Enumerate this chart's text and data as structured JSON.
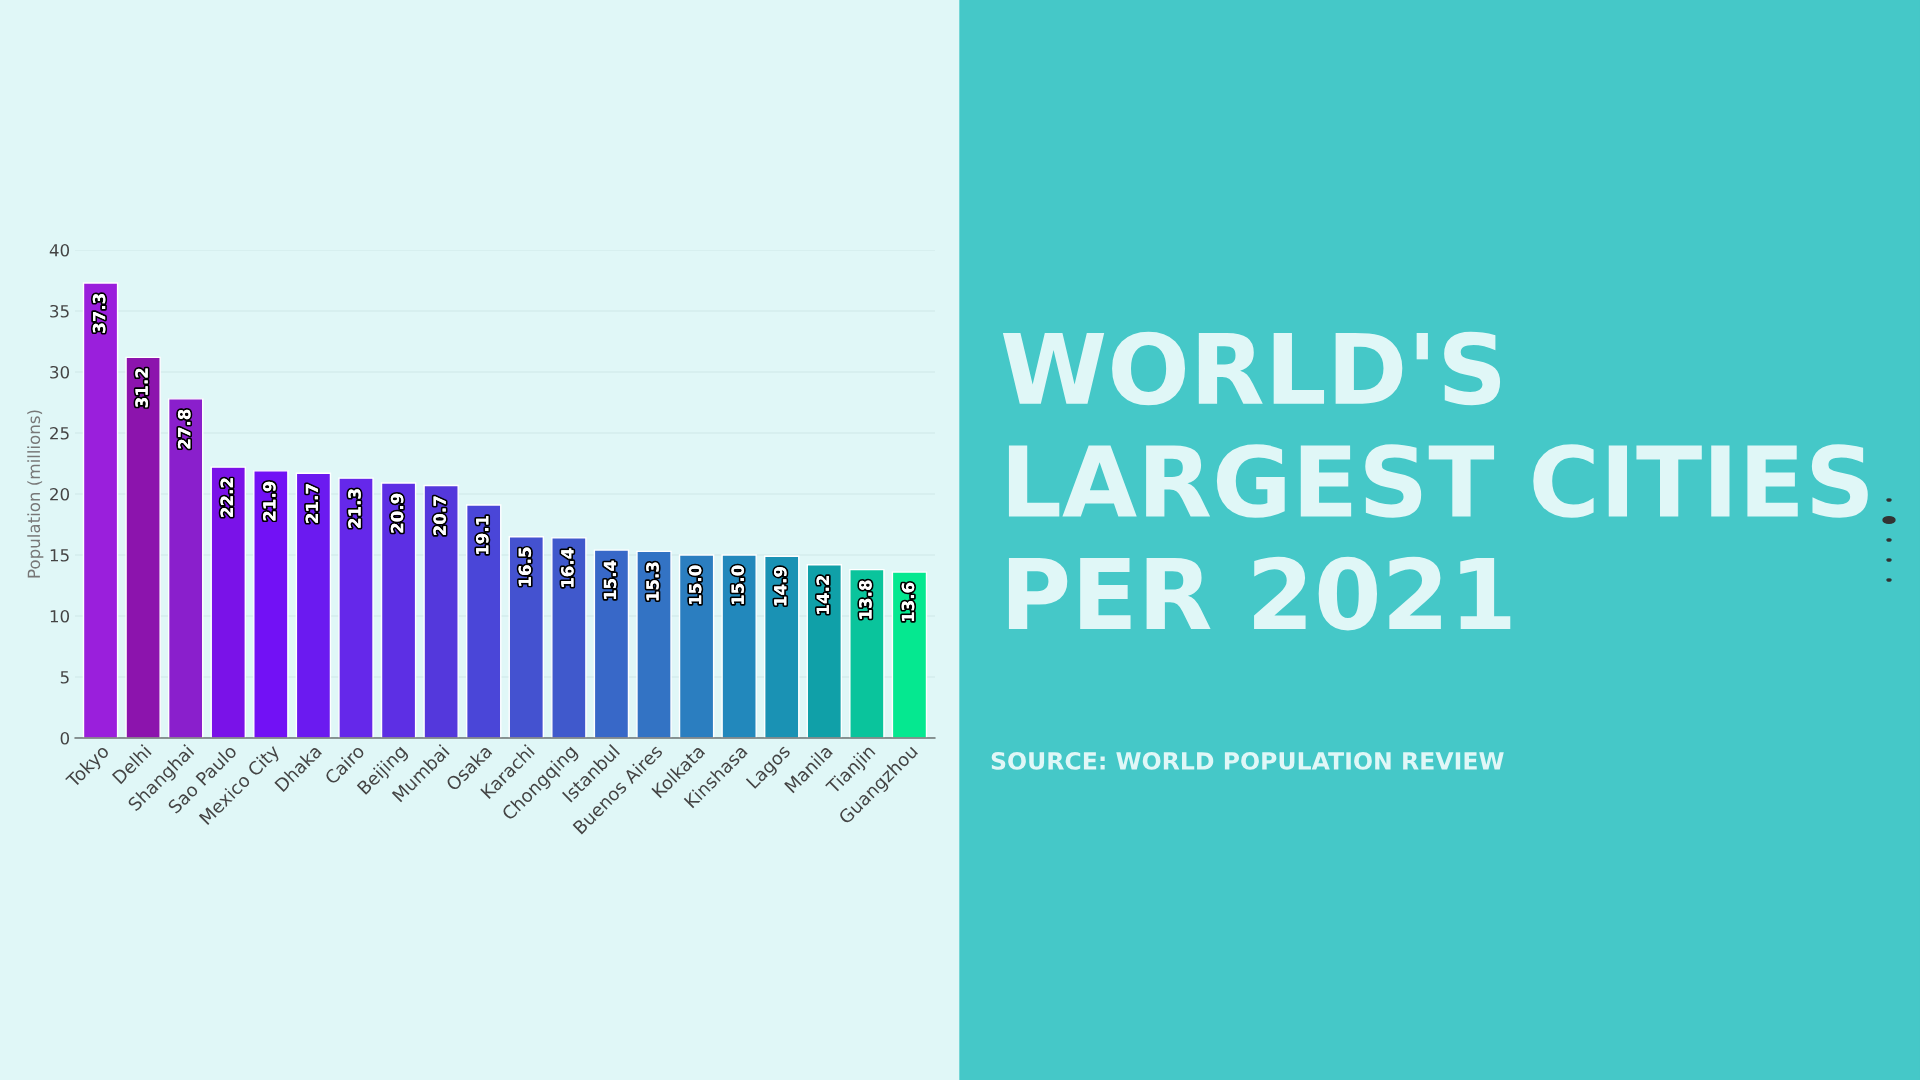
{
  "chart_data": {
    "type": "bar",
    "title": "WORLD'S\nLARGEST CITIES\nPER 2021",
    "ylabel": "Population (millions)",
    "annotations": [
      "SOURCE: WORLD POPULATION REVIEW"
    ],
    "categories": [
      "Tokyo",
      "Delhi",
      "Shanghai",
      "Sao Paulo",
      "Mexico City",
      "Dhaka",
      "Cairo",
      "Beijing",
      "Mumbai",
      "Osaka",
      "Karachi",
      "Chongqing",
      "Istanbul",
      "Buenos Aires",
      "Kolkata",
      "Kinshasa",
      "Lagos",
      "Manila",
      "Tianjin",
      "Guangzhou"
    ],
    "values": [
      37.3,
      31.2,
      27.8,
      22.2,
      21.9,
      21.7,
      21.3,
      20.9,
      20.7,
      19.1,
      16.5,
      16.4,
      15.4,
      15.3,
      15.0,
      15.0,
      14.9,
      14.2,
      13.8,
      13.6
    ],
    "value_labels": [
      "37.3",
      "31.2",
      "27.8",
      "22.2",
      "21.9",
      "21.7",
      "21.3",
      "20.9",
      "20.7",
      "19.1",
      "16.5",
      "16.4",
      "15.4",
      "15.3",
      "15.0",
      "15.0",
      "14.9",
      "14.2",
      "13.8",
      "13.6"
    ],
    "colors": [
      "#9a1fdc",
      "#8c14ad",
      "#8a1fcc",
      "#7a12e8",
      "#7211f5",
      "#6b1af0",
      "#6528ea",
      "#5d2fe4",
      "#5438dc",
      "#4a46d8",
      "#4452d0",
      "#4059cc",
      "#3868c8",
      "#3373c4",
      "#2b7ec0",
      "#2288bc",
      "#1a92b4",
      "#10a0a8",
      "#0ac49c",
      "#05e890"
    ],
    "ylim": [
      0,
      40
    ],
    "yticks": [
      0,
      5,
      10,
      15,
      20,
      25,
      30,
      35,
      40
    ],
    "grid": "y",
    "legend": false
  }
}
